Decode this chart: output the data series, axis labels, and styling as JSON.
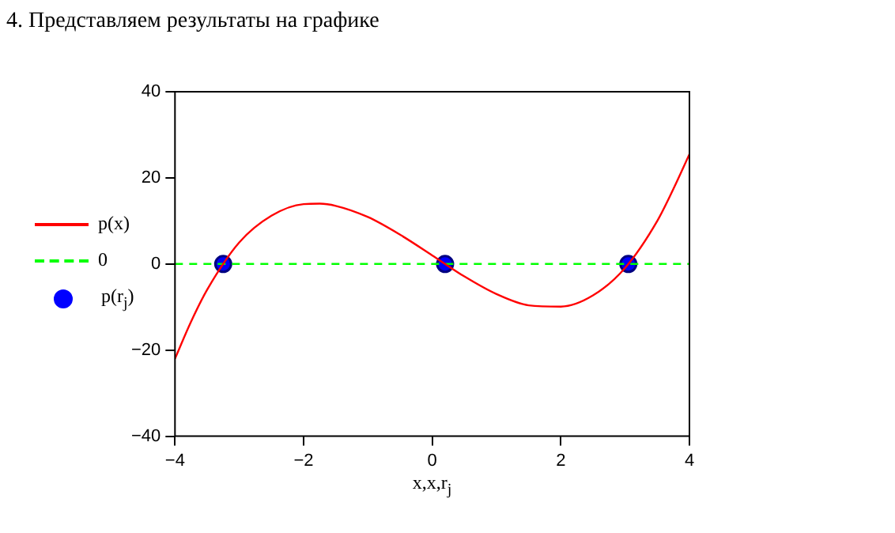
{
  "chart_data": {
    "type": "line",
    "title": "4. Представляем результаты на графике",
    "xlabel": "x,x,r$_{j}$",
    "xlim": [
      -4,
      4
    ],
    "xticks": [
      -4,
      -2,
      0,
      2,
      4
    ],
    "ylim": [
      -40,
      40
    ],
    "yticks": [
      -40,
      -20,
      0,
      20,
      40
    ],
    "grid": false,
    "legend": "left",
    "series": [
      {
        "name": "p(x)",
        "type": "line",
        "color": "#ff0000",
        "marker": "none",
        "line_style": "solid",
        "x": [
          -4,
          -3.75,
          -3.5,
          -3,
          -2.5,
          -2,
          -1.75,
          -1.5,
          -1,
          -0.5,
          0,
          0.5,
          1,
          1.5,
          2,
          2.5,
          3,
          3.5,
          3.75,
          4
        ],
        "values": [
          -22,
          -13.4,
          -6,
          5,
          11.2,
          13.9,
          14,
          13.5,
          10.9,
          6.8,
          2,
          -2.9,
          -7,
          -9.6,
          -9.9,
          -7.3,
          -0.9,
          10,
          17.4,
          25.5
        ]
      },
      {
        "name": "0",
        "type": "line",
        "color": "#00ff00",
        "marker": "none",
        "line_style": "dashed",
        "x": [
          -4,
          4
        ],
        "values": [
          0,
          0
        ]
      },
      {
        "name": "p(r$_{j}$)",
        "type": "scatter",
        "color": "#0000ff",
        "marker": "circle",
        "x": [
          -3.25,
          0.2,
          3.05
        ],
        "values": [
          0,
          0,
          0
        ]
      }
    ]
  }
}
